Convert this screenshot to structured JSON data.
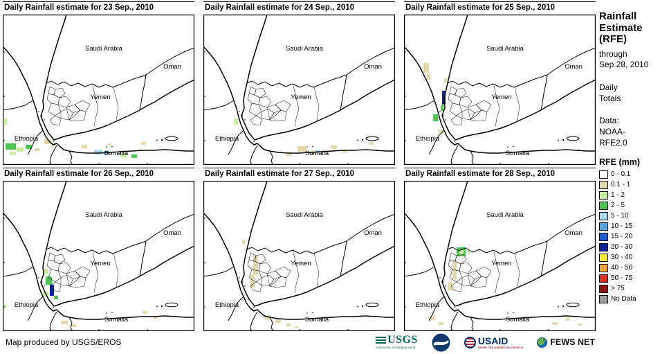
{
  "panels": [
    {
      "title": "Daily Rainfall estimate for 23 Sep., 2010",
      "patches": [
        [
          4,
          186,
          15,
          9,
          "#4FC455"
        ],
        [
          20,
          192,
          10,
          6,
          "#C7EFA2"
        ],
        [
          33,
          188,
          9,
          6,
          "#4FC455"
        ],
        [
          10,
          198,
          9,
          5,
          "#C7EFA2"
        ],
        [
          46,
          193,
          7,
          4,
          "#E2D8AC"
        ],
        [
          60,
          180,
          10,
          7,
          "#E2D8AC"
        ],
        [
          70,
          186,
          6,
          4,
          "#E2D8AC"
        ],
        [
          1,
          150,
          5,
          9,
          "#C7EFA2"
        ],
        [
          114,
          188,
          8,
          5,
          "#E2D8AC"
        ],
        [
          132,
          195,
          12,
          7,
          "#A8D9F0"
        ],
        [
          146,
          197,
          7,
          5,
          "#55A2DE"
        ],
        [
          170,
          200,
          10,
          6,
          "#C7EFA2"
        ],
        [
          186,
          202,
          8,
          5,
          "#4FC455"
        ],
        [
          200,
          184,
          7,
          4,
          "#E2D8AC"
        ],
        [
          152,
          186,
          5,
          3,
          "#E2D8AC"
        ]
      ]
    },
    {
      "title": "Daily Rainfall estimate for 24 Sep., 2010",
      "patches": [
        [
          44,
          150,
          6,
          9,
          "#C7EFA2"
        ],
        [
          136,
          190,
          13,
          8,
          "#E2D8AC"
        ],
        [
          154,
          197,
          10,
          6,
          "#E2D8AC"
        ],
        [
          162,
          195,
          6,
          5,
          "#A8D9F0"
        ],
        [
          184,
          189,
          9,
          5,
          "#E2D8AC"
        ],
        [
          200,
          196,
          7,
          4,
          "#E2D8AC"
        ],
        [
          240,
          184,
          6,
          4,
          "#E2D8AC"
        ],
        [
          120,
          200,
          8,
          4,
          "#E2D8AC"
        ]
      ]
    },
    {
      "title": "Daily Rainfall estimate for 25 Sep., 2010",
      "patches": [
        [
          28,
          70,
          8,
          14,
          "#E2D8AC"
        ],
        [
          33,
          86,
          5,
          8,
          "#E2D8AC"
        ],
        [
          42,
          144,
          7,
          10,
          "#4FC455"
        ],
        [
          55,
          110,
          5,
          20,
          "#11219B"
        ],
        [
          53,
          131,
          4,
          8,
          "#4FC455"
        ],
        [
          50,
          166,
          7,
          5,
          "#E2D8AC"
        ],
        [
          58,
          92,
          4,
          6,
          "#E2D8AC"
        ]
      ]
    },
    {
      "title": "Daily Rainfall estimate for 26 Sep., 2010",
      "patches": [
        [
          62,
          138,
          9,
          12,
          "#4FC455"
        ],
        [
          68,
          150,
          6,
          16,
          "#11219B"
        ],
        [
          58,
          160,
          8,
          7,
          "#C7EFA2"
        ],
        [
          74,
          166,
          6,
          5,
          "#4FC455"
        ],
        [
          60,
          128,
          6,
          6,
          "#C7EFA2"
        ],
        [
          84,
          202,
          10,
          5,
          "#E2D8AC"
        ],
        [
          98,
          207,
          8,
          4,
          "#E2D8AC"
        ],
        [
          202,
          188,
          7,
          4,
          "#E2D8AC"
        ],
        [
          218,
          195,
          6,
          4,
          "#E2D8AC"
        ],
        [
          1,
          178,
          4,
          6,
          "#C7EFA2"
        ]
      ]
    },
    {
      "title": "Daily Rainfall estimate for 27 Sep., 2010",
      "patches": [
        [
          72,
          108,
          7,
          28,
          "#E2D8AC"
        ],
        [
          68,
          136,
          6,
          18,
          "#E2D8AC"
        ],
        [
          88,
          194,
          10,
          6,
          "#E2D8AC"
        ],
        [
          104,
          200,
          8,
          5,
          "#E2D8AC"
        ],
        [
          120,
          206,
          6,
          4,
          "#E2D8AC"
        ],
        [
          56,
          86,
          4,
          5,
          "#E2D8AC"
        ],
        [
          132,
          210,
          5,
          3,
          "#E2D8AC"
        ]
      ]
    },
    {
      "title": "Daily Rainfall estimate for 28 Sep., 2010",
      "patches": [
        [
          76,
          96,
          13,
          13,
          "#4FC455"
        ],
        [
          80,
          100,
          6,
          7,
          "#C7EFA2"
        ],
        [
          92,
          100,
          4,
          5,
          "#C7EFA2"
        ],
        [
          70,
          116,
          6,
          26,
          "#E2D8AC"
        ],
        [
          64,
          146,
          6,
          12,
          "#E2D8AC"
        ],
        [
          36,
          196,
          9,
          5,
          "#E2D8AC"
        ],
        [
          50,
          204,
          7,
          4,
          "#E2D8AC"
        ],
        [
          214,
          204,
          8,
          4,
          "#E2D8AC"
        ],
        [
          234,
          198,
          5,
          4,
          "#E2D8AC"
        ],
        [
          252,
          206,
          5,
          3,
          "#E2D8AC"
        ]
      ]
    }
  ],
  "map_labels": [
    "Saudi Arabia",
    "Oman",
    "Yemen",
    "Ethiopia",
    "Somalia"
  ],
  "sidebar": {
    "title": "Rainfall Estimate (RFE)",
    "through": "through",
    "date": "Sep 28, 2010",
    "totals": "Daily Totals",
    "data_label": "Data:",
    "data_source": "NOAA-RFE2.0",
    "legend_title": "RFE (mm)",
    "legend": [
      {
        "label": "0 - 0.1",
        "color": "#FFFFFF"
      },
      {
        "label": "0.1 - 1",
        "color": "#E2D8AC"
      },
      {
        "label": "1 - 2",
        "color": "#C7EFA2"
      },
      {
        "label": "2 - 5",
        "color": "#4FC455"
      },
      {
        "label": "5 - 10",
        "color": "#A8D9F0"
      },
      {
        "label": "10 - 15",
        "color": "#55A2DE"
      },
      {
        "label": "15 - 20",
        "color": "#2058D8"
      },
      {
        "label": "20 - 30",
        "color": "#11219B"
      },
      {
        "label": "30 - 40",
        "color": "#F6EC3E"
      },
      {
        "label": "40 - 50",
        "color": "#F5A13A"
      },
      {
        "label": "50 - 75",
        "color": "#DE3023"
      },
      {
        "label": "> 75",
        "color": "#8E1309"
      },
      {
        "label": "No Data",
        "color": "#9A9A9A"
      }
    ]
  },
  "footer": {
    "credit": "Map produced by USGS/EROS",
    "usgs": {
      "text": "USGS",
      "tagline": "science for a changing world"
    },
    "noaa_icon": "noaa-emblem",
    "usaid": {
      "text": "USAID",
      "tagline": "FROM THE AMERICAN PEOPLE"
    },
    "fewsnet": {
      "text": "FEWS NET"
    }
  }
}
